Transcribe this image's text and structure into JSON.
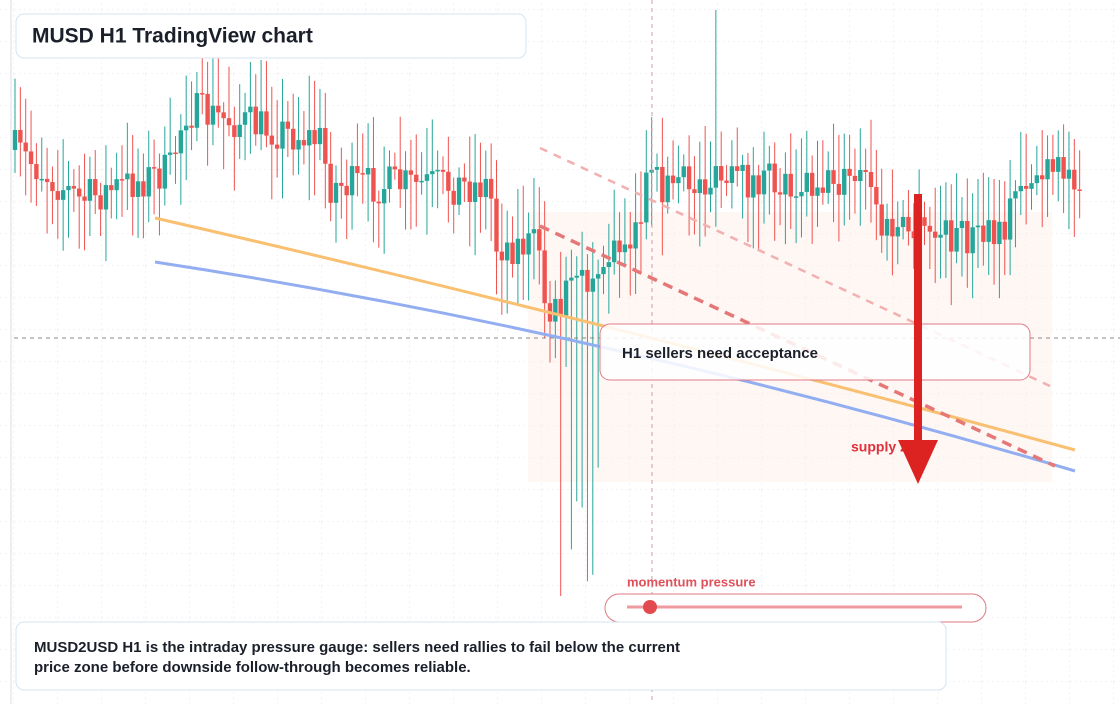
{
  "chart_data": {
    "type": "candlestick",
    "title": "MUSD H1 TradingView chart",
    "annotations": {
      "box": "H1 sellers need acceptance",
      "zone": "supply zone",
      "gauge": "momentum pressure"
    },
    "description": [
      "MUSD2USD H1 is the intraday pressure gauge: sellers need rallies to fail below the current",
      "price zone before downside follow-through becomes reliable."
    ]
  }
}
